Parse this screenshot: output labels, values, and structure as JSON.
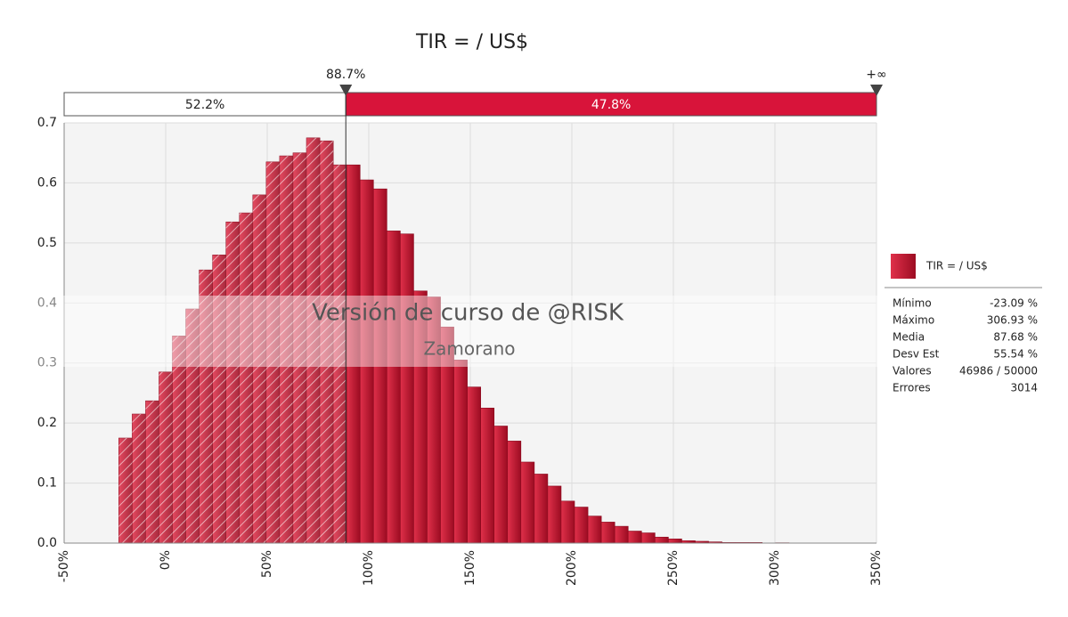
{
  "chart_data": {
    "type": "histogram",
    "title": "TIR = / US$",
    "bins": [
      -23.09,
      -16.49,
      -9.89,
      -3.29,
      3.31,
      9.91,
      16.51,
      23.11,
      29.71,
      36.31,
      42.91,
      49.51,
      56.11,
      62.71,
      69.32,
      75.92,
      82.52,
      89.12,
      95.72,
      102.32,
      108.92,
      115.52,
      122.12,
      128.72,
      135.32,
      141.92,
      148.52,
      155.12,
      161.72,
      168.32,
      174.92,
      181.52,
      188.12,
      194.72,
      201.32,
      207.93,
      214.53,
      221.13,
      227.73,
      234.33,
      240.93,
      247.53,
      254.13,
      260.73,
      267.33,
      273.93,
      280.53,
      287.13,
      293.73,
      300.33,
      306.93
    ],
    "values": [
      0.175,
      0.215,
      0.237,
      0.285,
      0.345,
      0.39,
      0.455,
      0.48,
      0.535,
      0.55,
      0.58,
      0.635,
      0.645,
      0.65,
      0.675,
      0.67,
      0.63,
      0.63,
      0.605,
      0.59,
      0.52,
      0.515,
      0.42,
      0.41,
      0.36,
      0.305,
      0.26,
      0.225,
      0.195,
      0.17,
      0.135,
      0.115,
      0.095,
      0.07,
      0.06,
      0.045,
      0.035,
      0.028,
      0.02,
      0.017,
      0.01,
      0.007,
      0.004,
      0.003,
      0.002,
      0.001,
      0.001,
      0.001,
      0,
      0.0005
    ],
    "color": "#c8102e",
    "xlim": [
      -50,
      350
    ],
    "xticks": [
      {
        "value": -50,
        "label": "-50%"
      },
      {
        "value": 0,
        "label": "0%"
      },
      {
        "value": 50,
        "label": "50%"
      },
      {
        "value": 100,
        "label": "100%"
      },
      {
        "value": 150,
        "label": "150%"
      },
      {
        "value": 200,
        "label": "200%"
      },
      {
        "value": 250,
        "label": "250%"
      },
      {
        "value": 300,
        "label": "300%"
      },
      {
        "value": 350,
        "label": "350%"
      }
    ],
    "ylim": [
      0,
      0.7
    ],
    "yticks": [
      {
        "value": 0,
        "label": "0.0"
      },
      0.1,
      0.2,
      0.3,
      0.4,
      0.5,
      0.6,
      0.7
    ],
    "grid": true,
    "delimiter": {
      "cutoff": {
        "value": 88.7,
        "label": "88.7%"
      },
      "right_label": "+∞",
      "left_share": "52.2%",
      "right_share": "47.8%"
    },
    "watermark": [
      "Versión de curso de @RISK",
      "Zamorano"
    ],
    "legend": {
      "name": "TIR = / US$",
      "stats": [
        [
          "Mínimo",
          "-23.09 %"
        ],
        [
          "Máximo",
          "306.93 %"
        ],
        [
          "Media",
          "87.68 %"
        ],
        [
          "Desv Est",
          "55.54 %"
        ],
        [
          "Valores",
          "46986 / 50000"
        ],
        [
          "Errores",
          "3014"
        ]
      ]
    }
  }
}
